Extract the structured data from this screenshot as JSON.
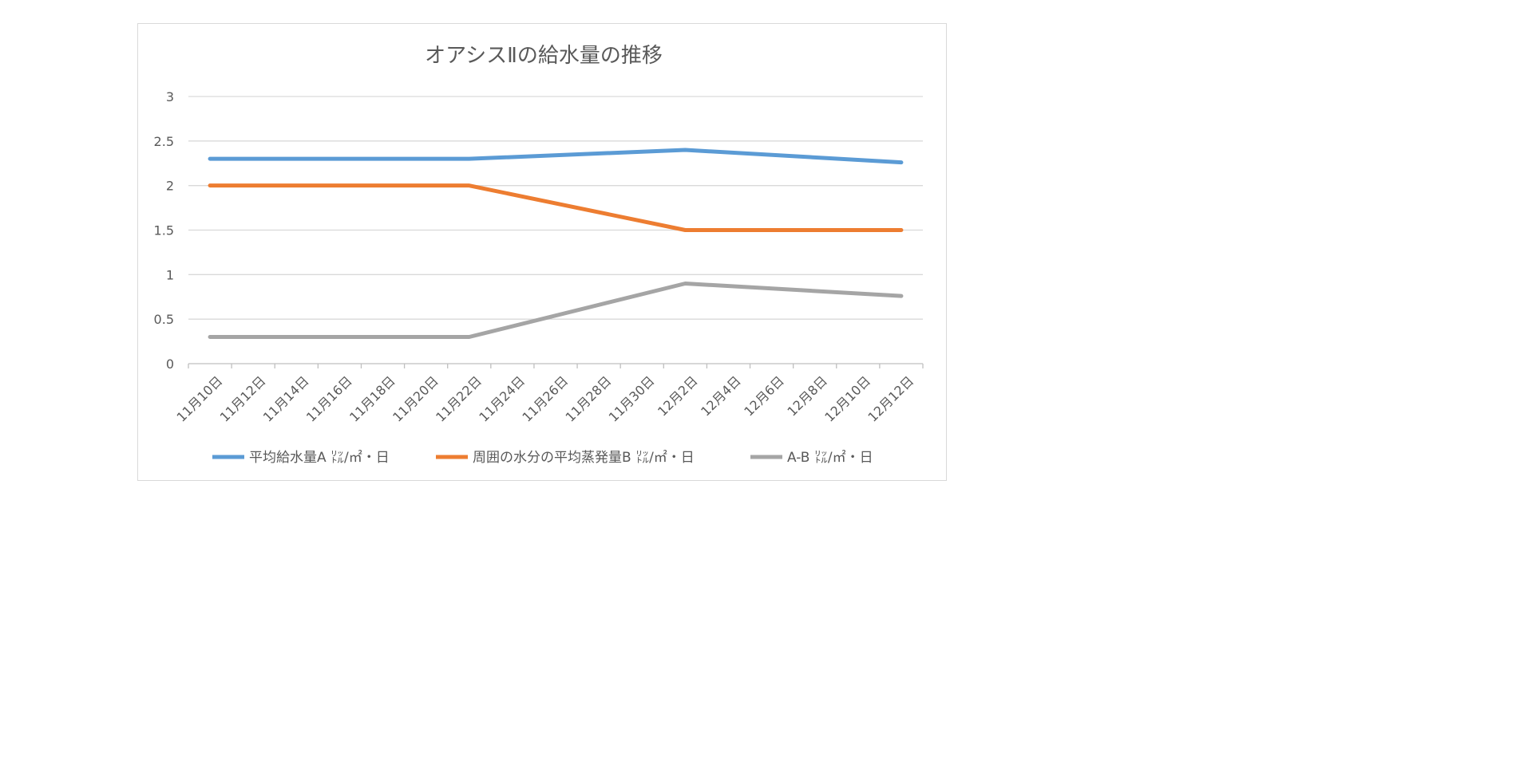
{
  "chart_data": {
    "type": "line",
    "title": "オアシスⅡの給水量の推移",
    "xlabel": "",
    "ylabel": "",
    "categories": [
      "11月10日",
      "11月12日",
      "11月14日",
      "11月16日",
      "11月18日",
      "11月20日",
      "11月22日",
      "11月24日",
      "11月26日",
      "11月28日",
      "11月30日",
      "12月2日",
      "12月4日",
      "12月6日",
      "12月8日",
      "12月10日",
      "12月12日"
    ],
    "ylim": [
      0,
      3
    ],
    "yticks": [
      "0",
      "0.5",
      "1",
      "1.5",
      "2",
      "2.5",
      "3"
    ],
    "grid": true,
    "legend": "bottom",
    "series": [
      {
        "name": "平均給水量A ㍑/㎡・日",
        "color": "#5B9BD5",
        "points": [
          [
            "11月10日",
            2.3
          ],
          [
            "11月22日",
            2.3
          ],
          [
            "12月2日",
            2.4
          ],
          [
            "12月12日",
            2.26
          ]
        ]
      },
      {
        "name": "周囲の水分の平均蒸発量B ㍑/㎡・日",
        "color": "#ED7D31",
        "points": [
          [
            "11月10日",
            2.0
          ],
          [
            "11月22日",
            2.0
          ],
          [
            "12月2日",
            1.5
          ],
          [
            "12月12日",
            1.5
          ]
        ]
      },
      {
        "name": "A-B ㍑/㎡・日",
        "color": "#A5A5A5",
        "points": [
          [
            "11月10日",
            0.3
          ],
          [
            "11月22日",
            0.3
          ],
          [
            "12月2日",
            0.9
          ],
          [
            "12月12日",
            0.76
          ]
        ]
      }
    ]
  }
}
